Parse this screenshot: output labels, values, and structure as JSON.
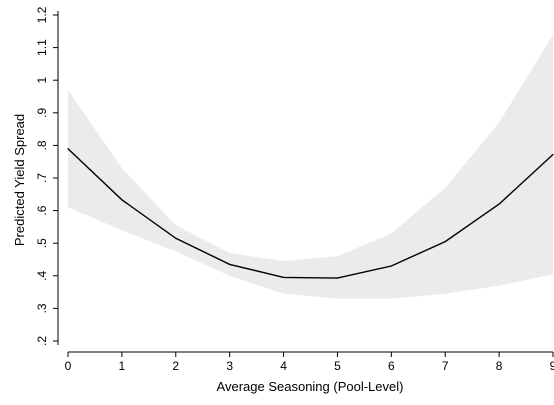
{
  "chart_data": {
    "type": "line",
    "title": "",
    "xlabel": "Average Seasoning (Pool-Level)",
    "ylabel": "Predicted Yield Spread",
    "xlim": [
      0,
      9
    ],
    "ylim": [
      0.2,
      1.2
    ],
    "x_ticks": [
      0,
      1,
      2,
      3,
      4,
      5,
      6,
      7,
      8,
      9
    ],
    "y_ticks": [
      0.2,
      0.3,
      0.4,
      0.5,
      0.6,
      0.7,
      0.8,
      0.9,
      1.0,
      1.1,
      1.2
    ],
    "y_tick_labels": [
      ".2",
      ".3",
      ".4",
      ".5",
      ".6",
      ".7",
      ".8",
      ".9",
      "1",
      "1.1",
      "1.2"
    ],
    "grid": false,
    "series": [
      {
        "x": [
          0,
          1,
          2,
          3,
          4,
          5,
          6,
          7,
          8,
          9
        ],
        "values": [
          0.79,
          0.633,
          0.515,
          0.435,
          0.395,
          0.393,
          0.43,
          0.505,
          0.62,
          0.772
        ],
        "color": "#000000"
      }
    ],
    "confidence_band": {
      "x": [
        0,
        1,
        2,
        3,
        4,
        5,
        6,
        7,
        8,
        9
      ],
      "upper": [
        0.97,
        0.73,
        0.555,
        0.47,
        0.445,
        0.46,
        0.53,
        0.67,
        0.87,
        1.14
      ],
      "lower": [
        0.61,
        0.54,
        0.475,
        0.4,
        0.345,
        0.33,
        0.33,
        0.345,
        0.37,
        0.405
      ],
      "color": "#ebebeb"
    }
  }
}
